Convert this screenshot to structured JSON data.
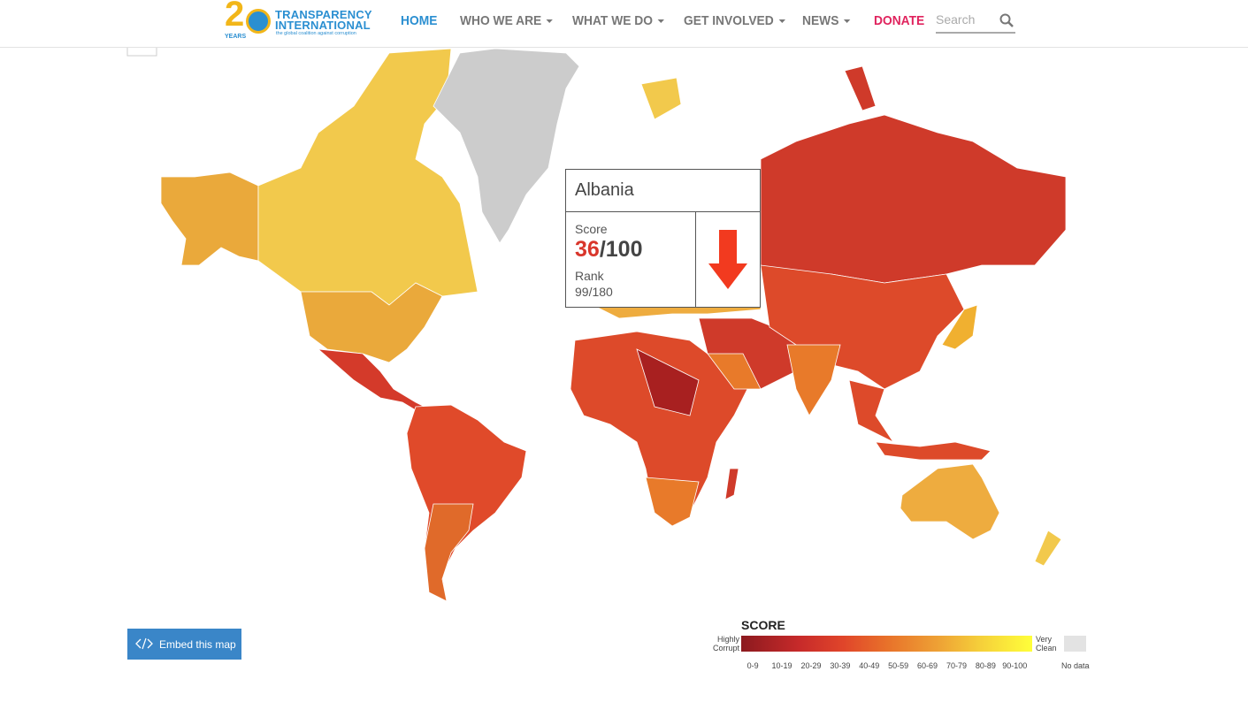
{
  "header": {
    "logo": {
      "digit": "2",
      "years": "YEARS",
      "name_line1": "TRANSPARENCY",
      "name_line2": "INTERNATIONAL",
      "tagline": "the global coalition against corruption"
    },
    "nav": [
      "HOME",
      "WHO WE ARE",
      "WHAT WE DO",
      "GET INVOLVED",
      "NEWS",
      "DONATE"
    ],
    "search_placeholder": "Search"
  },
  "tooltip": {
    "country": "Albania",
    "score_label": "Score",
    "score": 36,
    "score_max": "/100",
    "rank_label": "Rank",
    "rank": "99/180"
  },
  "embed_button": "Embed this map",
  "legend": {
    "title": "SCORE",
    "low_label": "Highly Corrupt",
    "high_label": "Very Clean",
    "ranges": [
      "0-9",
      "10-19",
      "20-29",
      "30-39",
      "40-49",
      "50-59",
      "60-69",
      "70-79",
      "80-89",
      "90-100"
    ],
    "no_data": "No data"
  }
}
